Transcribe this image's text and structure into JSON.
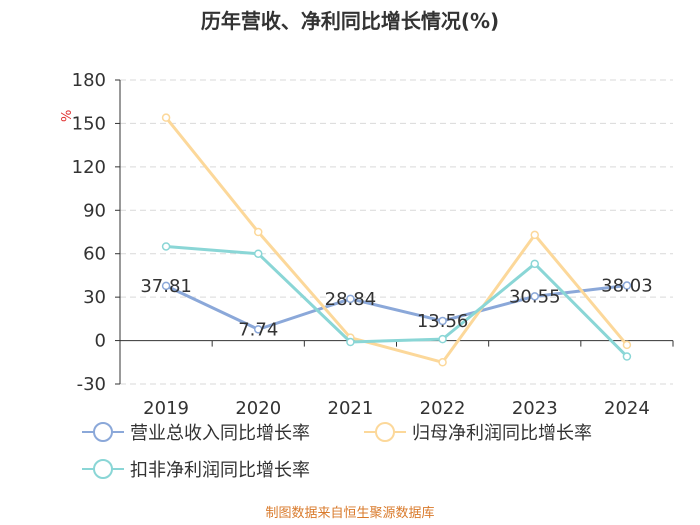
{
  "chart_data": {
    "type": "line",
    "title": "历年营收、净利同比增长情况(%)",
    "y_unit": "%",
    "categories": [
      "2019",
      "2020",
      "2021",
      "2022",
      "2023",
      "2024"
    ],
    "ylim": [
      -30,
      180
    ],
    "yticks": [
      -30,
      0,
      30,
      60,
      90,
      120,
      150,
      180
    ],
    "grid": true,
    "series": [
      {
        "name": "营业总收入同比增长率",
        "color": "#8ba8d9",
        "values": [
          37.81,
          7.74,
          28.84,
          13.56,
          30.55,
          38.03
        ],
        "labels": [
          "37.81",
          "7.74",
          "28.84",
          "13.56",
          "30.55",
          "38.03"
        ]
      },
      {
        "name": "归母净利润同比增长率",
        "color": "#fcd89a",
        "values": [
          154,
          75,
          2,
          -15,
          73,
          -3
        ]
      },
      {
        "name": "扣非净利润同比增长率",
        "color": "#8ad6d6",
        "values": [
          65,
          60,
          -1,
          1,
          53,
          -11
        ]
      }
    ],
    "legend_position": "bottom",
    "source": "制图数据来自恒生聚源数据库"
  }
}
